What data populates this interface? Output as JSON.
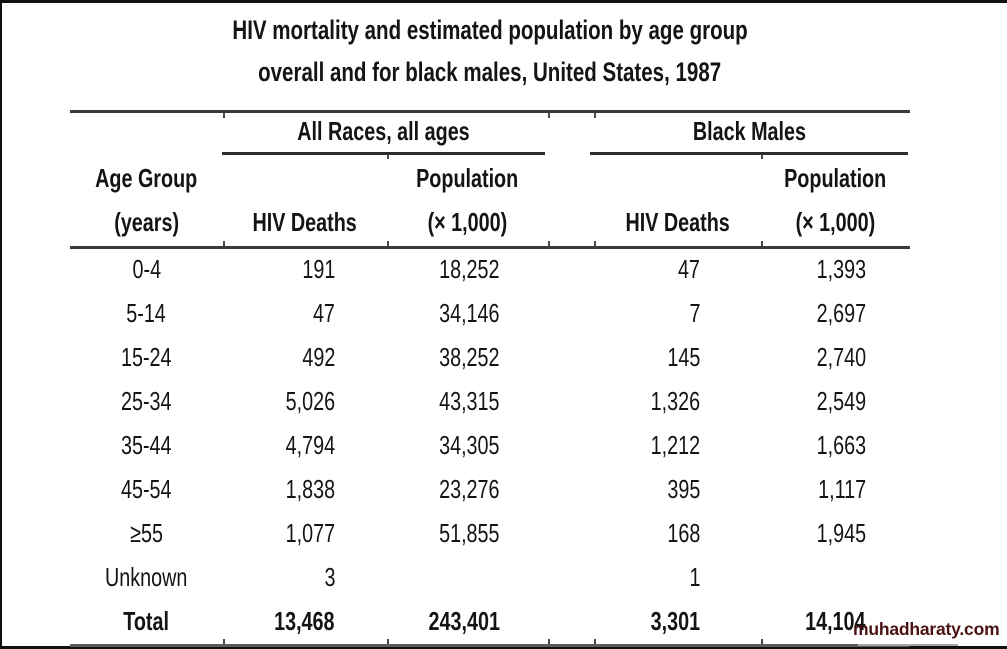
{
  "title": {
    "line1": "HIV mortality and estimated population by age group",
    "line2": "overall and for black males, United States, 1987"
  },
  "table": {
    "group_headers": [
      "All Races, all ages",
      "Black Males"
    ],
    "age_header": [
      "Age Group",
      "(years)"
    ],
    "col_headers": {
      "hiv_deaths": "HIV Deaths",
      "population": "Population",
      "population_scale": "(× 1,000)"
    },
    "rows": [
      {
        "age": "0-4",
        "all_hiv": "191",
        "all_pop": "18,252",
        "bm_hiv": "47",
        "bm_pop": "1,393"
      },
      {
        "age": "5-14",
        "all_hiv": "47",
        "all_pop": "34,146",
        "bm_hiv": "7",
        "bm_pop": "2,697"
      },
      {
        "age": "15-24",
        "all_hiv": "492",
        "all_pop": "38,252",
        "bm_hiv": "145",
        "bm_pop": "2,740"
      },
      {
        "age": "25-34",
        "all_hiv": "5,026",
        "all_pop": "43,315",
        "bm_hiv": "1,326",
        "bm_pop": "2,549"
      },
      {
        "age": "35-44",
        "all_hiv": "4,794",
        "all_pop": "34,305",
        "bm_hiv": "1,212",
        "bm_pop": "1,663"
      },
      {
        "age": "45-54",
        "all_hiv": "1,838",
        "all_pop": "23,276",
        "bm_hiv": "395",
        "bm_pop": "1,117"
      },
      {
        "age": "≥55",
        "all_hiv": "1,077",
        "all_pop": "51,855",
        "bm_hiv": "168",
        "bm_pop": "1,945"
      },
      {
        "age": "Unknown",
        "all_hiv": "3",
        "all_pop": "",
        "bm_hiv": "1",
        "bm_pop": ""
      },
      {
        "age": "Total",
        "all_hiv": "13,468",
        "all_pop": "243,401",
        "bm_hiv": "3,301",
        "bm_pop": "14,104",
        "bold": true
      }
    ]
  },
  "watermark": {
    "text": "muhadharaty.com",
    "color": "#4a1212"
  },
  "text_color": "#141414",
  "chart_data": {
    "type": "table",
    "title": "HIV mortality and estimated population by age group overall and for black males, United States, 1987",
    "column_groups": [
      "All Races, all ages",
      "Black Males"
    ],
    "columns": [
      "Age Group (years)",
      "HIV Deaths (All Races)",
      "Population ×1,000 (All Races)",
      "HIV Deaths (Black Males)",
      "Population ×1,000 (Black Males)"
    ],
    "rows": [
      [
        "0-4",
        191,
        18252,
        47,
        1393
      ],
      [
        "5-14",
        47,
        34146,
        7,
        2697
      ],
      [
        "15-24",
        492,
        38252,
        145,
        2740
      ],
      [
        "25-34",
        5026,
        43315,
        1326,
        2549
      ],
      [
        "35-44",
        4794,
        34305,
        1212,
        1663
      ],
      [
        "45-54",
        1838,
        23276,
        395,
        1117
      ],
      [
        "≥55",
        1077,
        51855,
        168,
        1945
      ],
      [
        "Unknown",
        3,
        null,
        1,
        null
      ],
      [
        "Total",
        13468,
        243401,
        3301,
        14104
      ]
    ]
  }
}
